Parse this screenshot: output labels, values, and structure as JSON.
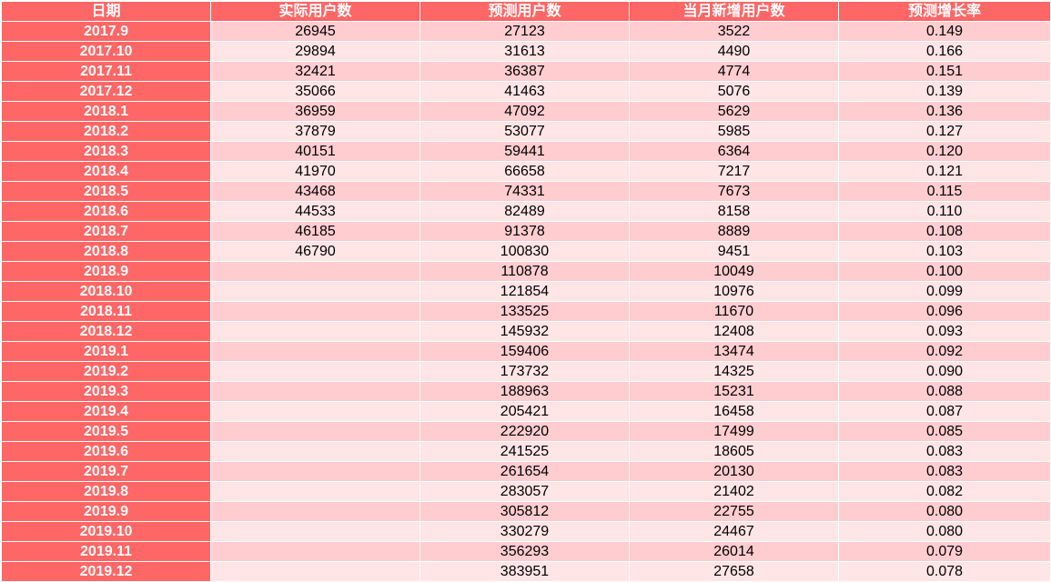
{
  "headers": [
    "日期",
    "实际用户数",
    "预测用户数",
    "当月新增用户数",
    "预测增长率"
  ],
  "rows": [
    [
      "2017.9",
      "26945",
      "27123",
      "3522",
      "0.149"
    ],
    [
      "2017.10",
      "29894",
      "31613",
      "4490",
      "0.166"
    ],
    [
      "2017.11",
      "32421",
      "36387",
      "4774",
      "0.151"
    ],
    [
      "2017.12",
      "35066",
      "41463",
      "5076",
      "0.139"
    ],
    [
      "2018.1",
      "36959",
      "47092",
      "5629",
      "0.136"
    ],
    [
      "2018.2",
      "37879",
      "53077",
      "5985",
      "0.127"
    ],
    [
      "2018.3",
      "40151",
      "59441",
      "6364",
      "0.120"
    ],
    [
      "2018.4",
      "41970",
      "66658",
      "7217",
      "0.121"
    ],
    [
      "2018.5",
      "43468",
      "74331",
      "7673",
      "0.115"
    ],
    [
      "2018.6",
      "44533",
      "82489",
      "8158",
      "0.110"
    ],
    [
      "2018.7",
      "46185",
      "91378",
      "8889",
      "0.108"
    ],
    [
      "2018.8",
      "46790",
      "100830",
      "9451",
      "0.103"
    ],
    [
      "2018.9",
      "",
      "110878",
      "10049",
      "0.100"
    ],
    [
      "2018.10",
      "",
      "121854",
      "10976",
      "0.099"
    ],
    [
      "2018.11",
      "",
      "133525",
      "11670",
      "0.096"
    ],
    [
      "2018.12",
      "",
      "145932",
      "12408",
      "0.093"
    ],
    [
      "2019.1",
      "",
      "159406",
      "13474",
      "0.092"
    ],
    [
      "2019.2",
      "",
      "173732",
      "14325",
      "0.090"
    ],
    [
      "2019.3",
      "",
      "188963",
      "15231",
      "0.088"
    ],
    [
      "2019.4",
      "",
      "205421",
      "16458",
      "0.087"
    ],
    [
      "2019.5",
      "",
      "222920",
      "17499",
      "0.085"
    ],
    [
      "2019.6",
      "",
      "241525",
      "18605",
      "0.083"
    ],
    [
      "2019.7",
      "",
      "261654",
      "20130",
      "0.083"
    ],
    [
      "2019.8",
      "",
      "283057",
      "21402",
      "0.082"
    ],
    [
      "2019.9",
      "",
      "305812",
      "22755",
      "0.080"
    ],
    [
      "2019.10",
      "",
      "330279",
      "24467",
      "0.080"
    ],
    [
      "2019.11",
      "",
      "356293",
      "26014",
      "0.079"
    ],
    [
      "2019.12",
      "",
      "383951",
      "27658",
      "0.078"
    ]
  ],
  "colors": {
    "header_bg": "#ff6666",
    "date_bg": "#ff6666",
    "row_odd_bg": "#ffcdd0",
    "row_even_bg": "#ffe5e6",
    "header_text": "#ffffff"
  }
}
